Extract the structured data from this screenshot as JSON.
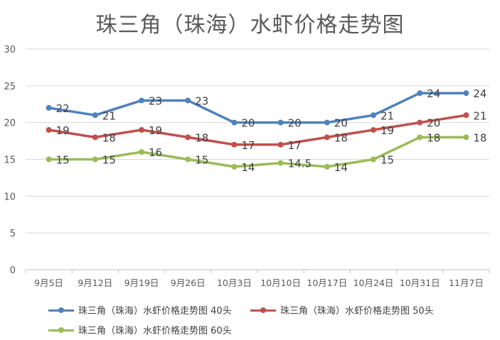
{
  "chart_data": {
    "type": "line",
    "title": "珠三角（珠海）水虾价格走势图",
    "categories": [
      "9月5日",
      "9月12日",
      "9月19日",
      "9月26日",
      "10月3日",
      "10月10日",
      "10月17日",
      "10月24日",
      "10月31日",
      "11月7日"
    ],
    "ylim": [
      0,
      30
    ],
    "yticks": [
      0,
      5,
      10,
      15,
      20,
      25,
      30
    ],
    "grid": true,
    "legend_position": "bottom",
    "series": [
      {
        "name": "珠三角（珠海）水虾价格走势图 40头",
        "color": "#4f81bd",
        "values": [
          22,
          21,
          23,
          23,
          20,
          20,
          20,
          21,
          24,
          24
        ],
        "labels": [
          "22",
          "21",
          "23",
          "23",
          "20",
          "20",
          "20",
          "21",
          "24",
          "24"
        ]
      },
      {
        "name": "珠三角（珠海）水虾价格走势图 50头",
        "color": "#c0504d",
        "values": [
          19,
          18,
          19,
          18,
          17,
          17,
          18,
          19,
          20,
          21
        ],
        "labels": [
          "19",
          "18",
          "19",
          "18",
          "17",
          "17",
          "18",
          "19",
          "20",
          "21"
        ]
      },
      {
        "name": "珠三角（珠海）水虾价格走势图 60头",
        "color": "#9bbb59",
        "values": [
          15,
          15,
          16,
          15,
          14,
          14.5,
          14,
          15,
          18,
          18
        ],
        "labels": [
          "15",
          "15",
          "16",
          "15",
          "14",
          "14.5",
          "14",
          "15",
          "18",
          "18"
        ]
      }
    ]
  }
}
